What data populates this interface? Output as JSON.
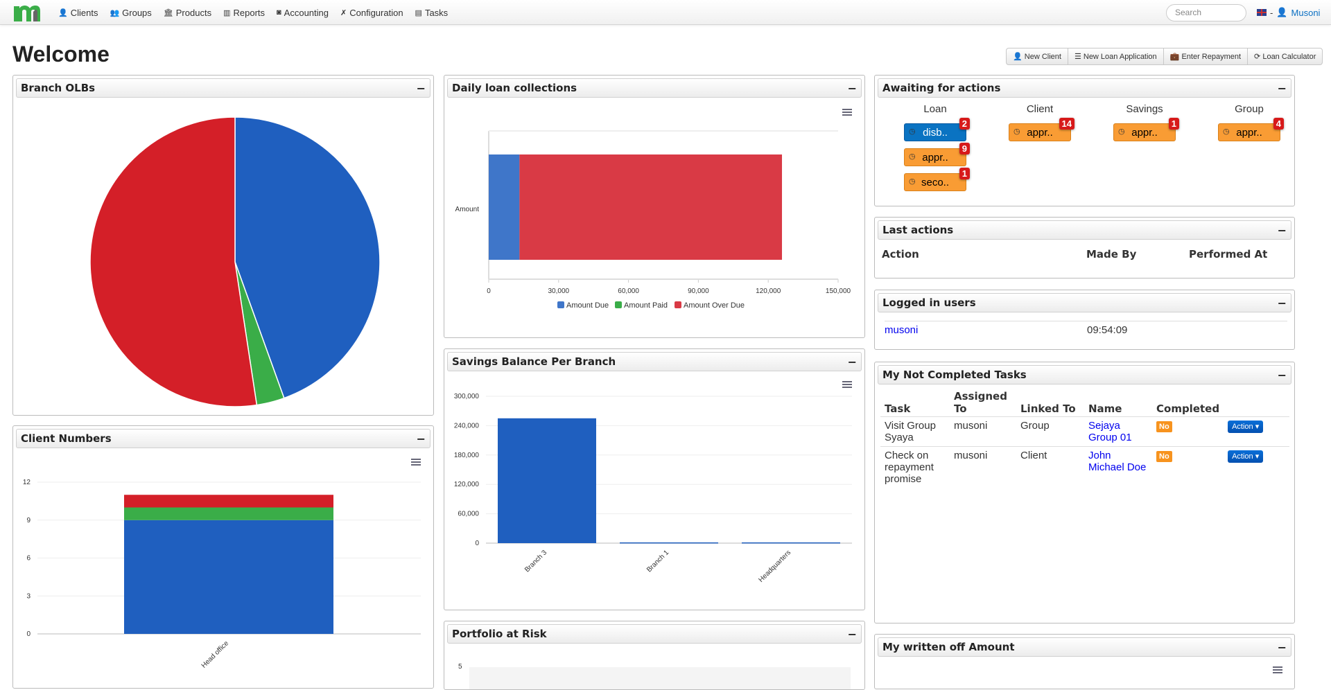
{
  "nav": {
    "items": [
      {
        "label": "Clients",
        "icon": "user-icon"
      },
      {
        "label": "Groups",
        "icon": "users-icon"
      },
      {
        "label": "Products",
        "icon": "bank-icon"
      },
      {
        "label": "Reports",
        "icon": "bar-chart-icon"
      },
      {
        "label": "Accounting",
        "icon": "money-icon"
      },
      {
        "label": "Configuration",
        "icon": "wrench-icon"
      },
      {
        "label": "Tasks",
        "icon": "list-icon"
      }
    ],
    "search_placeholder": "Search",
    "user": "Musoni",
    "separator": "-"
  },
  "page_title": "Welcome",
  "quick_actions": [
    "New Client",
    "New Loan Application",
    "Enter Repayment",
    "Loan Calculator"
  ],
  "panels": {
    "branch_olbs": "Branch OLBs",
    "client_numbers": "Client Numbers",
    "daily": "Daily loan collections",
    "savings": "Savings Balance Per Branch",
    "par": "Portfolio at Risk",
    "awaiting": "Awaiting for actions",
    "last_actions": "Last actions",
    "logged": "Logged in users",
    "tasks": "My Not Completed Tasks",
    "written_off": "My written off Amount",
    "minimize": "−"
  },
  "awaiting": {
    "columns": [
      {
        "title": "Loan",
        "items": [
          {
            "label": "disb..",
            "count": "2",
            "color": "blue"
          },
          {
            "label": "appr..",
            "count": "9",
            "color": "orange"
          },
          {
            "label": "seco..",
            "count": "1",
            "color": "orange"
          }
        ]
      },
      {
        "title": "Client",
        "items": [
          {
            "label": "appr..",
            "count": "14",
            "color": "orange"
          }
        ]
      },
      {
        "title": "Savings",
        "items": [
          {
            "label": "appr..",
            "count": "1",
            "color": "orange"
          }
        ]
      },
      {
        "title": "Group",
        "items": [
          {
            "label": "appr..",
            "count": "4",
            "color": "orange"
          }
        ]
      }
    ]
  },
  "last_actions": {
    "headers": [
      "Action",
      "Made By",
      "Performed At"
    ]
  },
  "logged_users": [
    {
      "user": "musoni",
      "time": "09:54:09"
    }
  ],
  "tasks": {
    "headers": [
      "Task",
      "Assigned To",
      "Linked To",
      "Name",
      "Completed"
    ],
    "rows": [
      {
        "task": "Visit Group Syaya",
        "assigned": "musoni",
        "linked": "Group",
        "name": "Sejaya Group 01",
        "completed": "No",
        "action": "Action"
      },
      {
        "task": "Check on repayment promise",
        "assigned": "musoni",
        "linked": "Client",
        "name": "John Michael Doe",
        "completed": "No",
        "action": "Action"
      }
    ]
  },
  "colors": {
    "blue": "#1f5fbf",
    "green": "#3aad48",
    "red": "#d41f28"
  },
  "chart_data": [
    {
      "id": "branch_olbs",
      "type": "pie",
      "slices": [
        {
          "value": 44.5,
          "color": "#1f5fbf"
        },
        {
          "value": 3.1,
          "color": "#3aad48"
        },
        {
          "value": 52.4,
          "color": "#d41f28"
        }
      ]
    },
    {
      "id": "daily",
      "type": "bar",
      "orientation": "horizontal",
      "stacked": true,
      "categories": [
        "Amount"
      ],
      "series": [
        {
          "name": "Amount Due",
          "values": [
            13200
          ],
          "color": "#3f76c9"
        },
        {
          "name": "Amount Paid",
          "values": [
            0
          ],
          "color": "#3aad48"
        },
        {
          "name": "Amount Over Due",
          "values": [
            112700
          ],
          "color": "#d93a45"
        }
      ],
      "xlim": [
        0,
        150000
      ],
      "ticks": [
        "0",
        "30,000",
        "60,000",
        "90,000",
        "120,000",
        "150,000"
      ],
      "legend": "bottom"
    },
    {
      "id": "savings",
      "type": "bar",
      "categories": [
        "Branch 3",
        "Branch 1",
        "Headquarters"
      ],
      "values": [
        255000,
        1500,
        1500
      ],
      "ylim": [
        0,
        300000
      ],
      "ticks": [
        "0",
        "60,000",
        "120,000",
        "180,000",
        "240,000",
        "300,000"
      ]
    },
    {
      "id": "clients",
      "type": "bar",
      "stacked": true,
      "categories": [
        "Head office"
      ],
      "series": [
        {
          "values": [
            9
          ],
          "color": "#1f5fbf"
        },
        {
          "values": [
            1
          ],
          "color": "#3aad48"
        },
        {
          "values": [
            1
          ],
          "color": "#d41f28"
        }
      ],
      "ylim": [
        0,
        12
      ],
      "ticks": [
        "0",
        "3",
        "6",
        "9",
        "12"
      ]
    },
    {
      "id": "par",
      "type": "bar",
      "ticks": [
        "5"
      ]
    }
  ]
}
